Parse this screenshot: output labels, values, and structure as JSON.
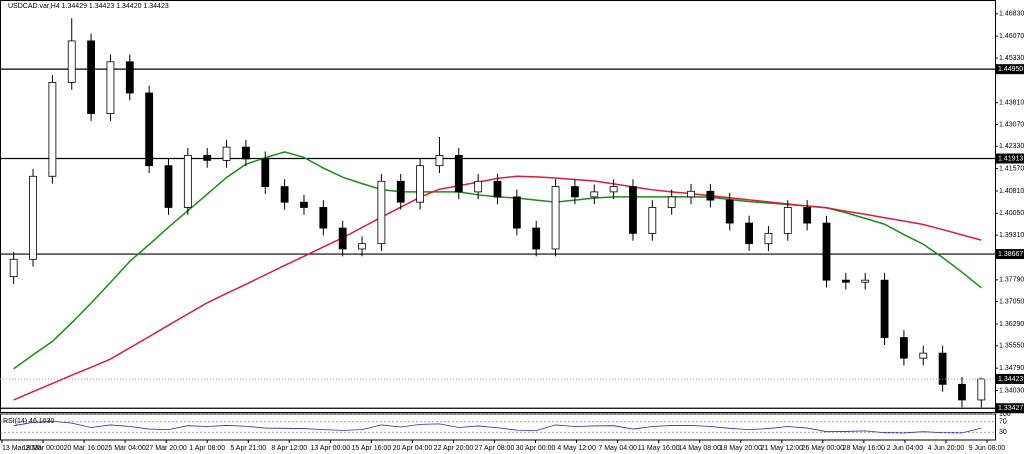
{
  "chart_data": {
    "type": "candlestick",
    "title": "USDCAD.var,H4  1.34429 1.34423 1.34420 1.34423",
    "open": [
      1.379,
      1.3849,
      1.4131,
      1.445,
      1.4591,
      1.4344,
      1.452,
      1.4414,
      1.4167,
      1.4025,
      1.4202,
      1.4185,
      1.423,
      1.419,
      1.4096,
      1.4043,
      1.4025,
      1.3955,
      1.3884,
      1.3902,
      1.4114,
      1.4043,
      1.4167,
      1.4202,
      1.4078,
      1.4114,
      1.4061,
      1.3955,
      1.3884,
      1.4096,
      1.4061,
      1.4078,
      1.4096,
      1.3937,
      1.4025,
      1.4061,
      1.408,
      1.405,
      1.3972,
      1.3902,
      1.3937,
      1.4025,
      1.3972,
      1.3778,
      1.3771,
      1.3778,
      1.3583,
      1.3513,
      1.353,
      1.3424,
      1.3371
    ],
    "high": [
      1.3874,
      1.4156,
      1.4475,
      1.4668,
      1.4616,
      1.4545,
      1.4545,
      1.4439,
      1.4192,
      1.4227,
      1.4227,
      1.4255,
      1.4255,
      1.4215,
      1.4121,
      1.4068,
      1.405,
      1.398,
      1.3927,
      1.4139,
      1.4139,
      1.4192,
      1.4265,
      1.4227,
      1.4139,
      1.4139,
      1.4086,
      1.398,
      1.4121,
      1.4121,
      1.4103,
      1.4121,
      1.4121,
      1.405,
      1.4086,
      1.4105,
      1.4105,
      1.4075,
      1.3997,
      1.3962,
      1.405,
      1.405,
      1.3997,
      1.3803,
      1.3803,
      1.3803,
      1.3608,
      1.3555,
      1.3555,
      1.3449,
      1.34467
    ],
    "low": [
      1.3765,
      1.3824,
      1.4106,
      1.4425,
      1.4319,
      1.4319,
      1.4389,
      1.4142,
      1.4,
      1.4,
      1.416,
      1.416,
      1.4165,
      1.4071,
      1.4018,
      1.4,
      1.393,
      1.3859,
      1.3859,
      1.3877,
      1.4018,
      1.4018,
      1.4142,
      1.4053,
      1.4053,
      1.4036,
      1.393,
      1.3859,
      1.3859,
      1.4036,
      1.4036,
      1.4053,
      1.3912,
      1.3912,
      1.4,
      1.4036,
      1.4025,
      1.3947,
      1.3877,
      1.3877,
      1.3912,
      1.3947,
      1.3753,
      1.3746,
      1.3746,
      1.3558,
      1.3488,
      1.3488,
      1.3399,
      1.3346,
      1.3346
    ],
    "close": [
      1.3849,
      1.4131,
      1.445,
      1.4591,
      1.4344,
      1.452,
      1.4414,
      1.4167,
      1.4025,
      1.4202,
      1.4185,
      1.423,
      1.419,
      1.4096,
      1.4043,
      1.4025,
      1.3955,
      1.3884,
      1.3902,
      1.4114,
      1.4043,
      1.4167,
      1.4202,
      1.4078,
      1.4114,
      1.4061,
      1.3955,
      1.3884,
      1.4096,
      1.4061,
      1.4078,
      1.4096,
      1.3937,
      1.4025,
      1.4061,
      1.408,
      1.405,
      1.3972,
      1.3902,
      1.3937,
      1.4025,
      1.3972,
      1.3778,
      1.3771,
      1.3778,
      1.3583,
      1.3513,
      1.353,
      1.3424,
      1.3371,
      1.34423
    ],
    "lines": [
      {
        "color": "#1a8c1a",
        "values": [
          1.3477,
          1.3524,
          1.357,
          1.3633,
          1.37,
          1.377,
          1.3842,
          1.3899,
          1.3958,
          1.4014,
          1.407,
          1.4127,
          1.4172,
          1.4194,
          1.4214,
          1.4195,
          1.4159,
          1.4128,
          1.4106,
          1.4086,
          1.4078,
          1.4078,
          1.4078,
          1.4078,
          1.4068,
          1.4061,
          1.4057,
          1.405,
          1.4043,
          1.405,
          1.4057,
          1.4061,
          1.4061,
          1.4061,
          1.4061,
          1.4061,
          1.406,
          1.4052,
          1.4045,
          1.404,
          1.4035,
          1.403,
          1.4024,
          1.4007,
          1.3988,
          1.3968,
          1.3933,
          1.39,
          1.3855,
          1.3805,
          1.3752
        ]
      },
      {
        "color": "#d81e3c",
        "values": [
          1.3371,
          1.3399,
          1.3427,
          1.3455,
          1.3482,
          1.351,
          1.3548,
          1.3586,
          1.3625,
          1.3663,
          1.3701,
          1.3733,
          1.3764,
          1.3796,
          1.3828,
          1.3859,
          1.3891,
          1.3922,
          1.3957,
          1.3992,
          1.4026,
          1.406,
          1.4087,
          1.4099,
          1.4111,
          1.4124,
          1.4131,
          1.4129,
          1.4125,
          1.412,
          1.4115,
          1.4105,
          1.4095,
          1.4085,
          1.4078,
          1.4072,
          1.4065,
          1.4058,
          1.4051,
          1.4044,
          1.4037,
          1.403,
          1.4024,
          1.4012,
          1.4002,
          1.399,
          1.3979,
          1.3967,
          1.395,
          1.3932,
          1.3914
        ]
      }
    ],
    "ylim": [
      1.333,
      1.473
    ],
    "yticks": [
      {
        "value": 1.4683,
        "label": "1.46830"
      },
      {
        "value": 1.4607,
        "label": "1.46070"
      },
      {
        "value": 1.4533,
        "label": "1.45330"
      },
      {
        "value": 1.4381,
        "label": "1.43810"
      },
      {
        "value": 1.4307,
        "label": "1.43070"
      },
      {
        "value": 1.4233,
        "label": "1.42330"
      },
      {
        "value": 1.4157,
        "label": "1.41570"
      },
      {
        "value": 1.4081,
        "label": "1.40810"
      },
      {
        "value": 1.4005,
        "label": "1.40050"
      },
      {
        "value": 1.3931,
        "label": "1.39310"
      },
      {
        "value": 1.3779,
        "label": "1.37790"
      },
      {
        "value": 1.3705,
        "label": "1.37050"
      },
      {
        "value": 1.3629,
        "label": "1.36290"
      },
      {
        "value": 1.3555,
        "label": "1.35550"
      },
      {
        "value": 1.3479,
        "label": "1.34790"
      },
      {
        "value": 1.3403,
        "label": "1.34030"
      }
    ],
    "levels": [
      {
        "value": 1.4495,
        "label": "1.44950"
      },
      1.41913,
      1.38667,
      1.33427
    ],
    "current": 1.34423,
    "x_labels": [
      "13 Mar 2020",
      "18 Mar 00:00",
      "20 Mar 16:00",
      "25 Mar 04:00",
      "27 Mar 20:00",
      "1 Apr 08:00",
      "5 Apr 21:00",
      "8 Apr 12:00",
      "13 Apr 00:00",
      "15 Apr 16:00",
      "20 Apr 04:00",
      "22 Apr 20:00",
      "27 Apr 08:00",
      "30 Apr 00:00",
      "4 May 12:00",
      "7 May 04:00",
      "11 May 16:00",
      "14 May 08:00",
      "18 May 20:00",
      "21 May 12:00",
      "26 May 00:00",
      "28 May 16:00",
      "2 Jun 04:00",
      "4 Jun 20:00",
      "9 Jun 08:00"
    ],
    "rsi": {
      "title": "RSI(14) 46.1030",
      "color": "#2b2bb5",
      "ylim": [
        0,
        100
      ],
      "yticks": [
        100,
        70,
        30
      ],
      "values": [
        55,
        68,
        72,
        65,
        48,
        58,
        52,
        42,
        40,
        55,
        52,
        56,
        53,
        46,
        45,
        44,
        40,
        37,
        40,
        58,
        50,
        60,
        62,
        48,
        54,
        47,
        38,
        36,
        58,
        52,
        54,
        55,
        42,
        52,
        56,
        56,
        52,
        45,
        40,
        44,
        52,
        46,
        32,
        33,
        35,
        28,
        27,
        32,
        28,
        27,
        46.103
      ]
    }
  }
}
